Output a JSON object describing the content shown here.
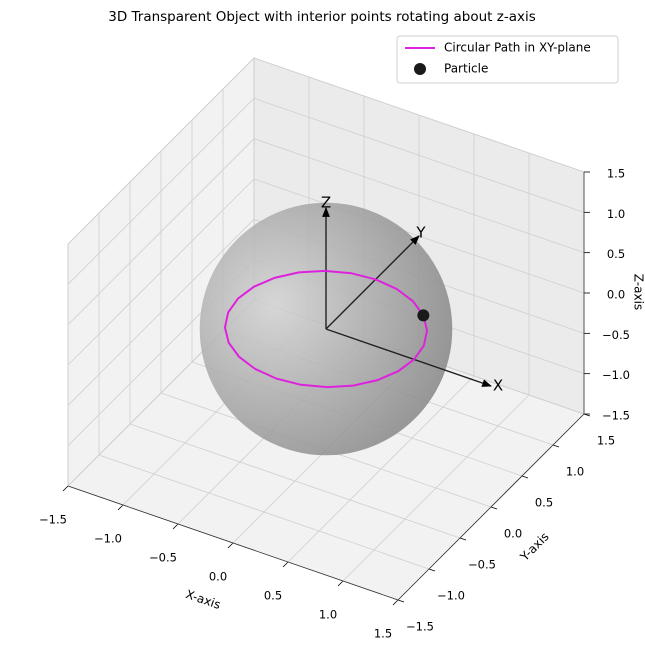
{
  "chart_data": {
    "type": "scatter3d",
    "title": "3D Transparent Object with interior points rotating about z-axis",
    "xlabel": "X-axis",
    "ylabel": "Y-axis",
    "zlabel": "Z-axis",
    "xlim": [
      -1.5,
      1.5
    ],
    "ylim": [
      -1.5,
      1.5
    ],
    "zlim": [
      -1.5,
      1.5
    ],
    "xticks": [
      {
        "value": -1.5,
        "label": "−1.5"
      },
      {
        "value": -1.0,
        "label": "−1.0"
      },
      {
        "value": -0.5,
        "label": "−0.5"
      },
      {
        "value": 0,
        "label": "0.0"
      },
      {
        "value": 0.5,
        "label": "0.5"
      },
      {
        "value": 1.0,
        "label": "1.0"
      },
      {
        "value": 1.5,
        "label": "1.5"
      }
    ],
    "yticks": [
      {
        "value": -1.5,
        "label": "−1.5"
      },
      {
        "value": -1.0,
        "label": "−1.0"
      },
      {
        "value": -0.5,
        "label": "−0.5"
      },
      {
        "value": 0,
        "label": "0.0"
      },
      {
        "value": 0.5,
        "label": "0.5"
      },
      {
        "value": 1.0,
        "label": "1.0"
      },
      {
        "value": 1.5,
        "label": "1.5"
      }
    ],
    "zticks": [
      {
        "value": -1.5,
        "label": "−1.5"
      },
      {
        "value": -1.0,
        "label": "−1.0"
      },
      {
        "value": -0.5,
        "label": "−0.5"
      },
      {
        "value": 0,
        "label": "0.0"
      },
      {
        "value": 0.5,
        "label": "0.5"
      },
      {
        "value": 1.0,
        "label": "1.0"
      },
      {
        "value": 1.5,
        "label": "1.5"
      }
    ],
    "grid": true,
    "legend": "upper right",
    "sphere": {
      "center": [
        0,
        0,
        0
      ],
      "radius": 1
    },
    "series": [
      {
        "name": "Circular Path in XY-plane",
        "color": "#dd22dd",
        "mode": "line",
        "x": [
          0.8,
          0.773,
          0.693,
          0.566,
          0.4,
          0.207,
          0,
          -0.207,
          -0.4,
          -0.566,
          -0.693,
          -0.773,
          -0.8,
          -0.773,
          -0.693,
          -0.566,
          -0.4,
          -0.207,
          0,
          0.207,
          0.4,
          0.566,
          0.693,
          0.773,
          0.8
        ],
        "y": [
          0,
          0.207,
          0.4,
          0.566,
          0.693,
          0.773,
          0.8,
          0.773,
          0.693,
          0.566,
          0.4,
          0.207,
          0,
          -0.207,
          -0.4,
          -0.566,
          -0.693,
          -0.773,
          -0.8,
          -0.773,
          -0.693,
          -0.566,
          -0.4,
          -0.207,
          0
        ],
        "z": [
          0,
          0,
          0,
          0,
          0,
          0,
          0,
          0,
          0,
          0,
          0,
          0,
          0,
          0,
          0,
          0,
          0,
          0,
          0,
          0,
          0,
          0,
          0,
          0,
          0
        ]
      },
      {
        "name": "Particle",
        "color": "#1a1a1a",
        "mode": "markers",
        "x": [
          0.566
        ],
        "y": [
          0.566
        ],
        "z": [
          0
        ]
      }
    ],
    "arrows": [
      {
        "label": "X",
        "start": [
          0,
          0,
          0
        ],
        "end": [
          1.5,
          0,
          0
        ]
      },
      {
        "label": "Y",
        "start": [
          0,
          0,
          0
        ],
        "end": [
          0,
          1.5,
          0
        ]
      },
      {
        "label": "Z",
        "start": [
          0,
          0,
          0
        ],
        "end": [
          0,
          0,
          1.5
        ]
      }
    ]
  }
}
